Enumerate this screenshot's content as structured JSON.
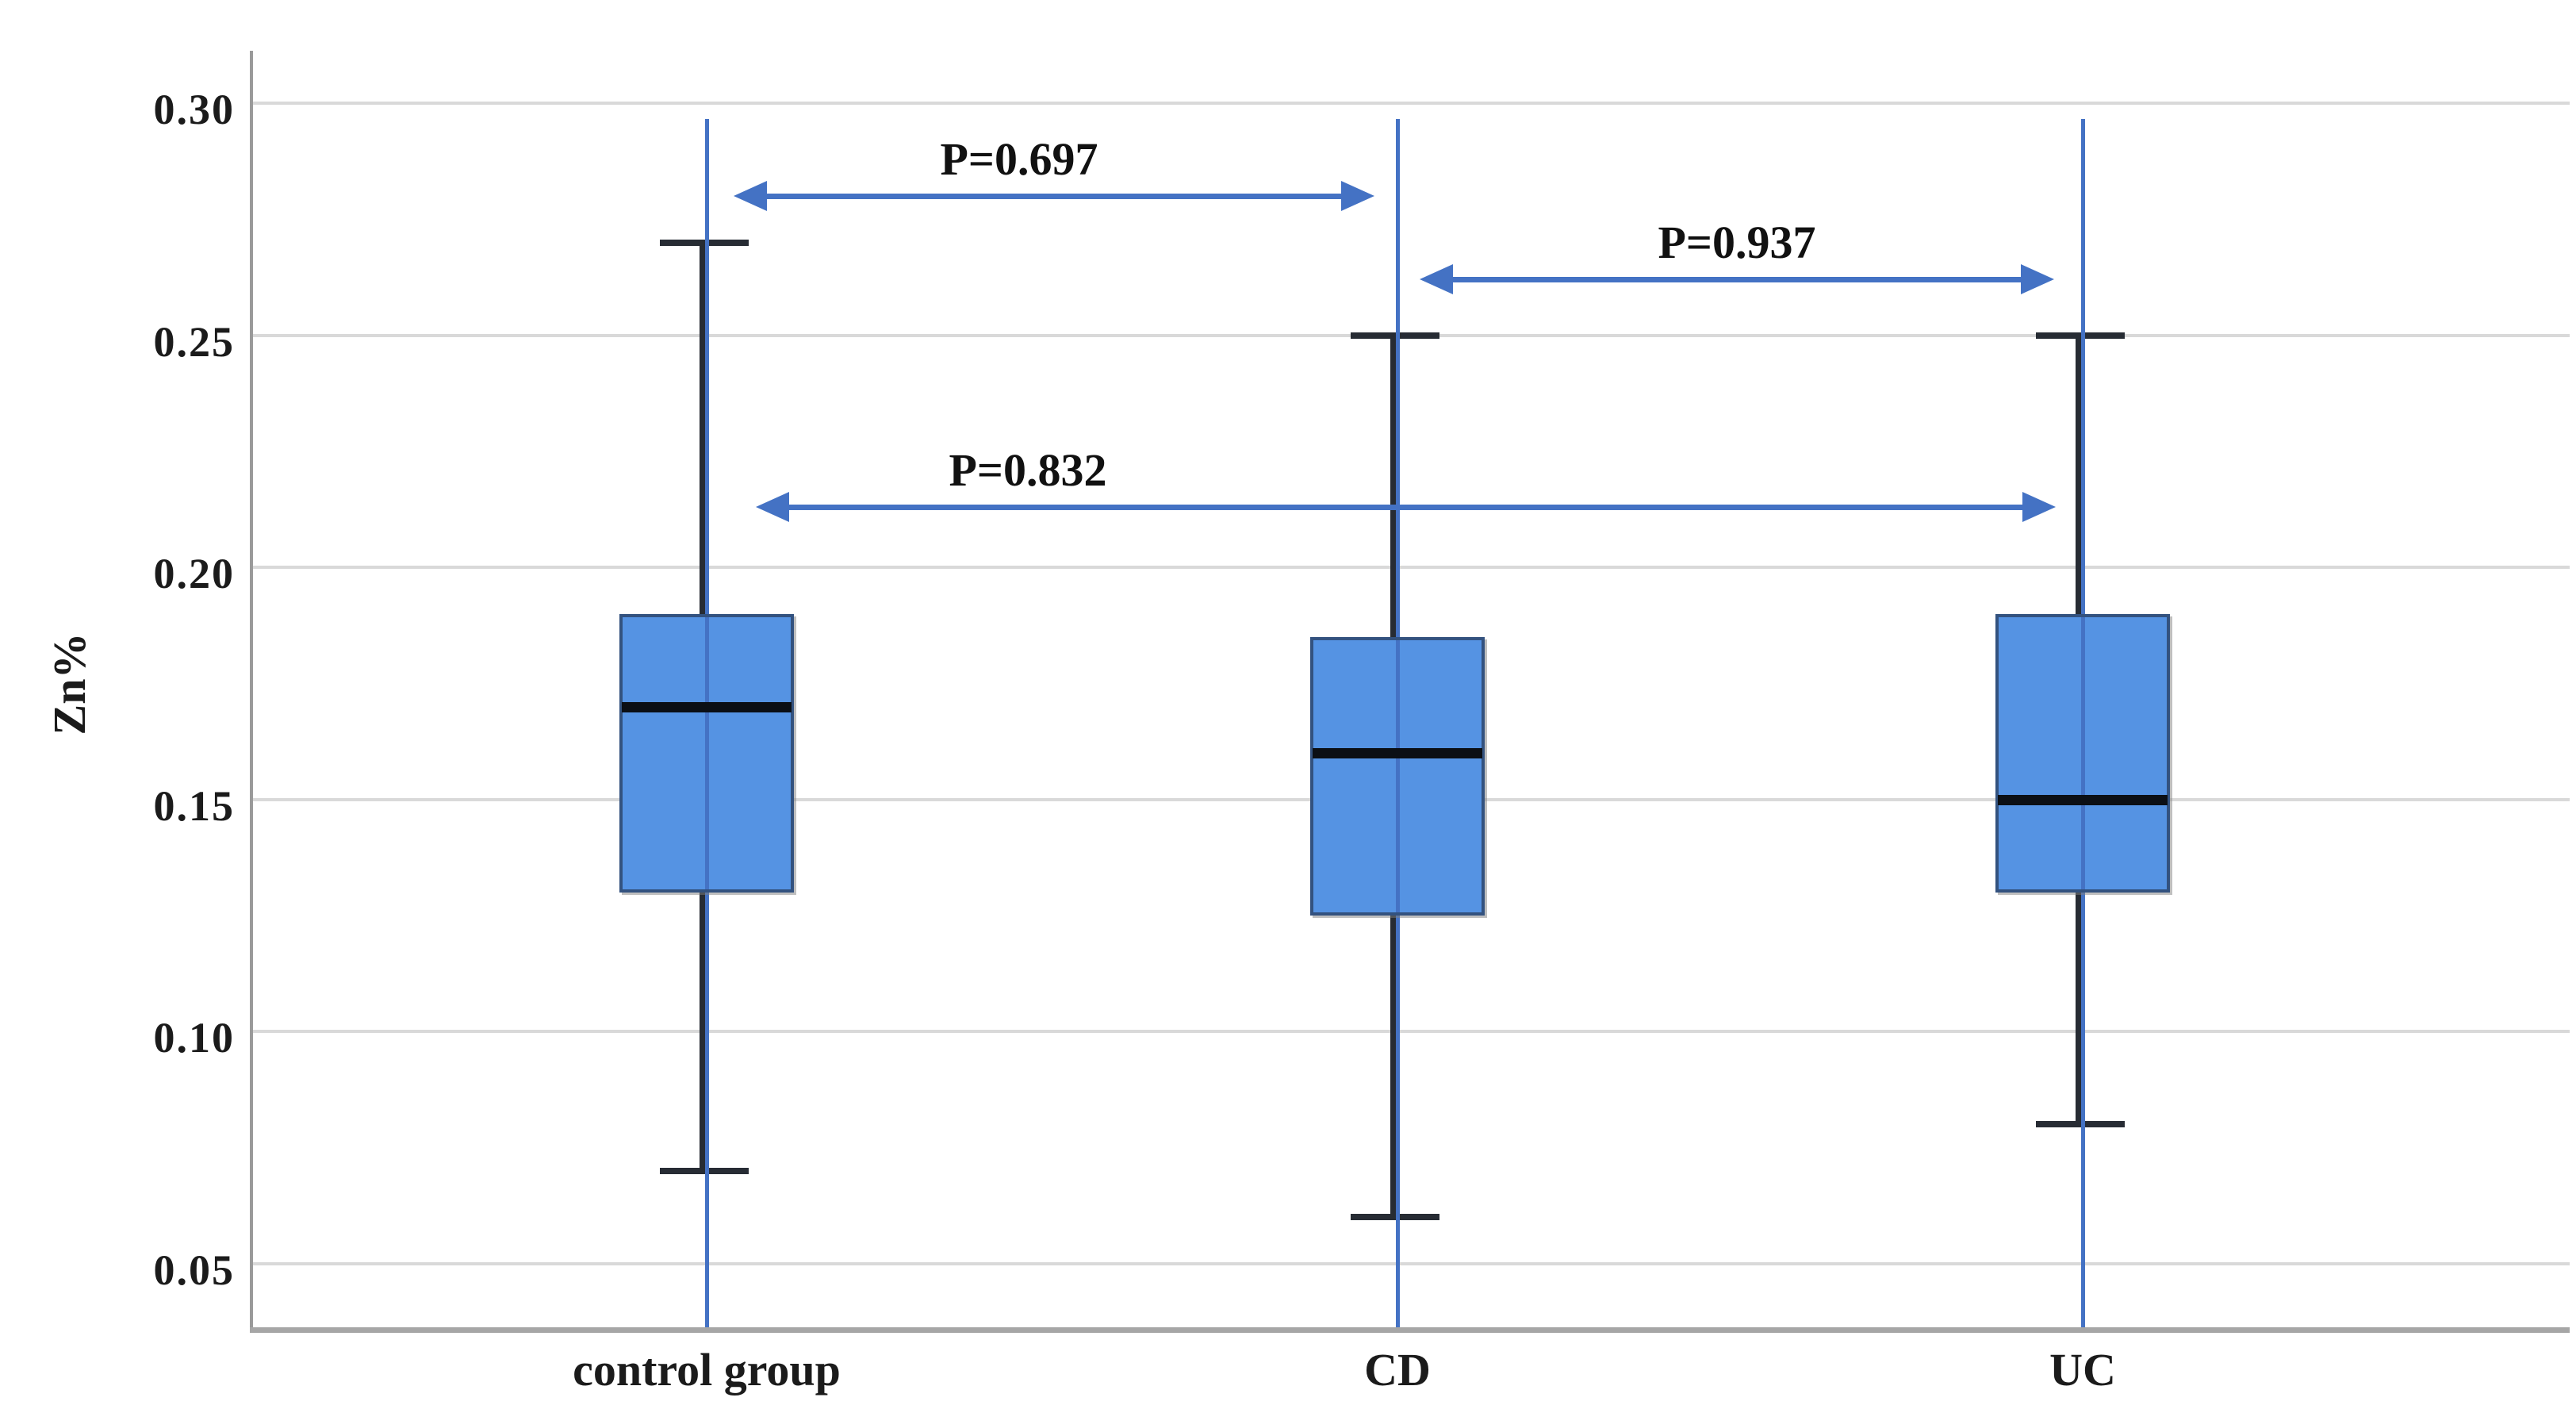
{
  "chart_data": {
    "type": "box",
    "title": "",
    "xlabel": "",
    "ylabel": "Zn%",
    "categories": [
      "control group",
      "CD",
      "UC"
    ],
    "yticks": [
      "0.30",
      "0.25",
      "0.20",
      "0.15",
      "0.10",
      "0.05"
    ],
    "ytick_values": [
      0.3,
      0.25,
      0.2,
      0.15,
      0.1,
      0.05
    ],
    "ylim": [
      0.035,
      0.312
    ],
    "grid": "horizontal",
    "legend": "none",
    "series": [
      {
        "name": "control group",
        "whisker_low": 0.07,
        "q1": 0.13,
        "median": 0.17,
        "q3": 0.19,
        "whisker_high": 0.27
      },
      {
        "name": "CD",
        "whisker_low": 0.06,
        "q1": 0.125,
        "median": 0.16,
        "q3": 0.185,
        "whisker_high": 0.25
      },
      {
        "name": "UC",
        "whisker_low": 0.08,
        "q1": 0.13,
        "median": 0.15,
        "q3": 0.19,
        "whisker_high": 0.25
      }
    ],
    "annotations": [
      {
        "label": "P=0.697",
        "from": 0,
        "to": 1,
        "y_value": 0.28
      },
      {
        "label": "P=0.937",
        "from": 1,
        "to": 2,
        "y_value": 0.262
      },
      {
        "label": "P=0.832",
        "from": 0,
        "to": 2,
        "y_value": 0.213
      }
    ],
    "colors": {
      "box_fill": "#5593E3",
      "box_border": "#33527F",
      "median": "#0B0F15",
      "whisker": "#272C34",
      "center_line": "#4472C4",
      "arrow": "#4472C4",
      "gridline": "#D9D9D9",
      "axis": "#A6A6A6",
      "axis_left": "#9A9A9A",
      "text": "#1B1B1B"
    }
  }
}
